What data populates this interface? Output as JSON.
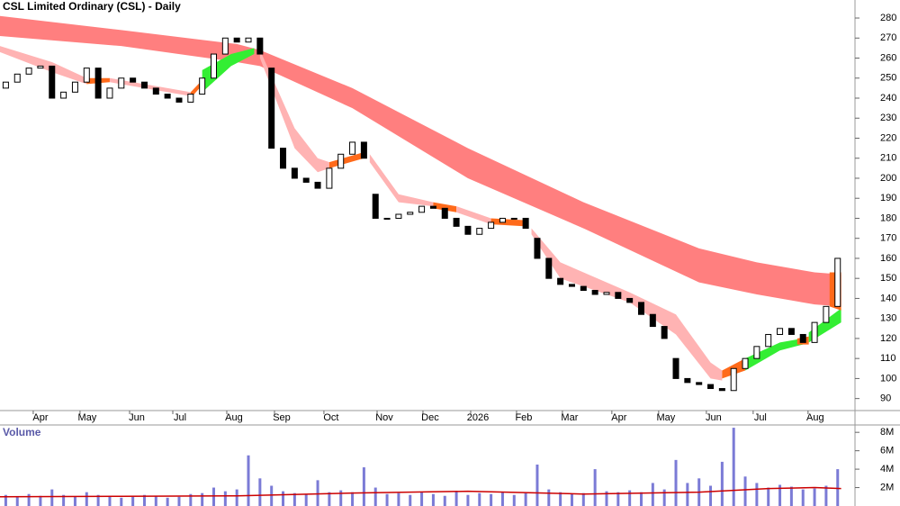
{
  "chart_data": [
    {
      "type": "candlestick",
      "title": "CSL Limited Ordinary (CSL) - Daily",
      "xlim": [
        -0.5,
        73.5
      ],
      "xticks": [
        {
          "value": 3.0,
          "label": "Apr"
        },
        {
          "value": 7.05,
          "label": "May"
        },
        {
          "value": 11.34,
          "label": "Jun"
        },
        {
          "value": 15.08,
          "label": "Jul"
        },
        {
          "value": 19.75,
          "label": "Aug"
        },
        {
          "value": 23.88,
          "label": "Sep"
        },
        {
          "value": 28.16,
          "label": "Oct"
        },
        {
          "value": 32.76,
          "label": "Nov"
        },
        {
          "value": 36.73,
          "label": "Dec"
        },
        {
          "value": 40.86,
          "label": "2026"
        },
        {
          "value": 44.83,
          "label": "Feb"
        },
        {
          "value": 48.8,
          "label": "Mar"
        },
        {
          "value": 53.08,
          "label": "Apr"
        },
        {
          "value": 57.13,
          "label": "May"
        },
        {
          "value": 61.26,
          "label": "Jun"
        },
        {
          "value": 65.31,
          "label": "Jul"
        },
        {
          "value": 70.06,
          "label": "Aug"
        }
      ],
      "ylim": [
        84,
        289
      ],
      "yticks": [
        90,
        100,
        110,
        120,
        130,
        140,
        150,
        160,
        170,
        180,
        190,
        200,
        210,
        220,
        230,
        240,
        250,
        260,
        270,
        280
      ],
      "open": [
        245,
        248,
        252,
        255,
        256,
        240,
        243,
        248,
        255,
        240,
        245,
        250,
        248,
        245,
        242,
        240,
        238,
        242,
        250,
        262,
        270,
        268,
        270,
        255,
        215,
        205,
        200,
        198,
        195,
        205,
        212,
        218,
        192,
        180,
        180,
        182,
        183,
        186,
        185,
        180,
        176,
        172,
        175,
        178,
        180,
        180,
        170,
        160,
        150,
        147,
        146,
        144,
        142,
        143,
        140,
        138,
        132,
        126,
        110,
        100,
        98,
        97,
        95,
        94,
        105,
        110,
        116,
        122,
        125,
        122,
        118,
        128,
        136
      ],
      "close": [
        248,
        252,
        255,
        256,
        240,
        243,
        248,
        255,
        240,
        245,
        250,
        248,
        245,
        242,
        240,
        238,
        242,
        250,
        262,
        270,
        268,
        270,
        262,
        215,
        205,
        200,
        198,
        195,
        205,
        212,
        218,
        210,
        180,
        180,
        182,
        183,
        186,
        185,
        180,
        176,
        172,
        175,
        178,
        180,
        180,
        175,
        160,
        150,
        147,
        146,
        144,
        142,
        143,
        140,
        138,
        132,
        126,
        120,
        100,
        98,
        97,
        95,
        94,
        105,
        110,
        116,
        122,
        125,
        122,
        118,
        128,
        136,
        160
      ],
      "bands": [
        {
          "color": "#ff7f7f",
          "x": [
            -0.5,
            10,
            20,
            22,
            30,
            40,
            50,
            60,
            65,
            70,
            72.3
          ],
          "upper": [
            281,
            274,
            267,
            264,
            245,
            215,
            188,
            165,
            158,
            153,
            152
          ],
          "lower": [
            271,
            266,
            258,
            256,
            235,
            200,
            175,
            148,
            142,
            137,
            136
          ]
        },
        {
          "color": "#ffb3b3",
          "x": [
            -0.5,
            4,
            7
          ],
          "upper": [
            266,
            258,
            250
          ],
          "lower": [
            263,
            253,
            247
          ]
        },
        {
          "color": "#ff6a1a",
          "x": [
            7,
            9
          ],
          "upper": [
            250,
            250
          ],
          "lower": [
            247,
            248
          ]
        },
        {
          "color": "#ffb3b3",
          "x": [
            9,
            13,
            16
          ],
          "upper": [
            250,
            246,
            243
          ],
          "lower": [
            248,
            244,
            241
          ]
        },
        {
          "color": "#ff6a1a",
          "x": [
            16,
            18
          ],
          "upper": [
            243,
            255
          ],
          "lower": [
            240,
            253
          ]
        },
        {
          "color": "#33ee33",
          "x": [
            17,
            19.5,
            21.5
          ],
          "upper": [
            254,
            262,
            265
          ],
          "lower": [
            243,
            256,
            262
          ]
        },
        {
          "color": "#ffb3b3",
          "x": [
            22,
            25,
            27,
            28
          ],
          "upper": [
            264,
            225,
            210,
            208
          ],
          "lower": [
            260,
            215,
            203,
            205
          ]
        },
        {
          "color": "#ff6a1a",
          "x": [
            28,
            31
          ],
          "upper": [
            208,
            213
          ],
          "lower": [
            205,
            210
          ]
        },
        {
          "color": "#ffb3b3",
          "x": [
            31.5,
            34,
            37
          ],
          "upper": [
            212,
            192,
            188
          ],
          "lower": [
            208,
            188,
            186
          ]
        },
        {
          "color": "#ff6a1a",
          "x": [
            37,
            39
          ],
          "upper": [
            188,
            186
          ],
          "lower": [
            185,
            183
          ]
        },
        {
          "color": "#ffb3b3",
          "x": [
            39,
            42
          ],
          "upper": [
            186,
            180
          ],
          "lower": [
            183,
            177
          ]
        },
        {
          "color": "#ff6a1a",
          "x": [
            42,
            45
          ],
          "upper": [
            180,
            179
          ],
          "lower": [
            177,
            176
          ]
        },
        {
          "color": "#ffb3b3",
          "x": [
            45.5,
            48,
            54,
            58,
            61,
            62
          ],
          "upper": [
            175,
            158,
            143,
            132,
            108,
            104
          ],
          "lower": [
            172,
            150,
            138,
            122,
            100,
            99
          ]
        },
        {
          "color": "#ff6a1a",
          "x": [
            62,
            64
          ],
          "upper": [
            104,
            110
          ],
          "lower": [
            100,
            104
          ]
        },
        {
          "color": "#33ee33",
          "x": [
            64,
            67,
            69
          ],
          "upper": [
            110,
            118,
            120
          ],
          "lower": [
            104,
            114,
            117
          ]
        },
        {
          "color": "#ff6a1a",
          "x": [
            68.5,
            69.5
          ],
          "upper": [
            120,
            121
          ],
          "lower": [
            117,
            117
          ]
        },
        {
          "color": "#33ee33",
          "x": [
            69.5,
            72.3
          ],
          "upper": [
            123,
            135
          ],
          "lower": [
            118,
            128
          ]
        },
        {
          "color": "#ff6a1a",
          "x": [
            71.3,
            72.3
          ],
          "upper": [
            153,
            153
          ],
          "lower": [
            136,
            134
          ]
        }
      ]
    },
    {
      "type": "bar",
      "title": "Volume",
      "color": "#7b7bd6",
      "xlim": [
        -0.5,
        73.5
      ],
      "ylim": [
        0,
        8.8
      ],
      "yticks": [
        {
          "value": 2,
          "label": "2M"
        },
        {
          "value": 4,
          "label": "4M"
        },
        {
          "value": 6,
          "label": "6M"
        },
        {
          "value": 8,
          "label": "8M"
        }
      ],
      "values": [
        1.2,
        1.0,
        1.3,
        1.1,
        1.8,
        1.2,
        1.0,
        1.5,
        1.2,
        1.1,
        0.9,
        1.0,
        1.2,
        1.1,
        0.9,
        1.0,
        1.3,
        1.4,
        2.0,
        1.6,
        1.8,
        5.5,
        3.0,
        2.2,
        1.6,
        1.4,
        1.3,
        2.8,
        1.5,
        1.7,
        1.5,
        4.2,
        2.0,
        1.3,
        1.4,
        1.2,
        1.5,
        1.3,
        1.1,
        1.6,
        1.2,
        1.4,
        1.3,
        1.5,
        1.2,
        1.4,
        4.5,
        1.8,
        1.5,
        1.3,
        1.4,
        4.0,
        1.6,
        1.5,
        1.7,
        1.5,
        2.5,
        1.8,
        5.0,
        2.5,
        3.0,
        2.2,
        4.8,
        8.5,
        3.2,
        2.5,
        2.0,
        2.3,
        2.1,
        1.8,
        1.9,
        2.2,
        4.0
      ],
      "ma_x": [
        -0.5,
        10,
        20,
        30,
        40,
        50,
        60,
        66,
        70,
        72.3
      ],
      "ma": [
        1.0,
        1.05,
        1.1,
        1.4,
        1.6,
        1.3,
        1.5,
        1.9,
        2.0,
        1.9
      ],
      "ma_color": "#cc0000"
    }
  ]
}
